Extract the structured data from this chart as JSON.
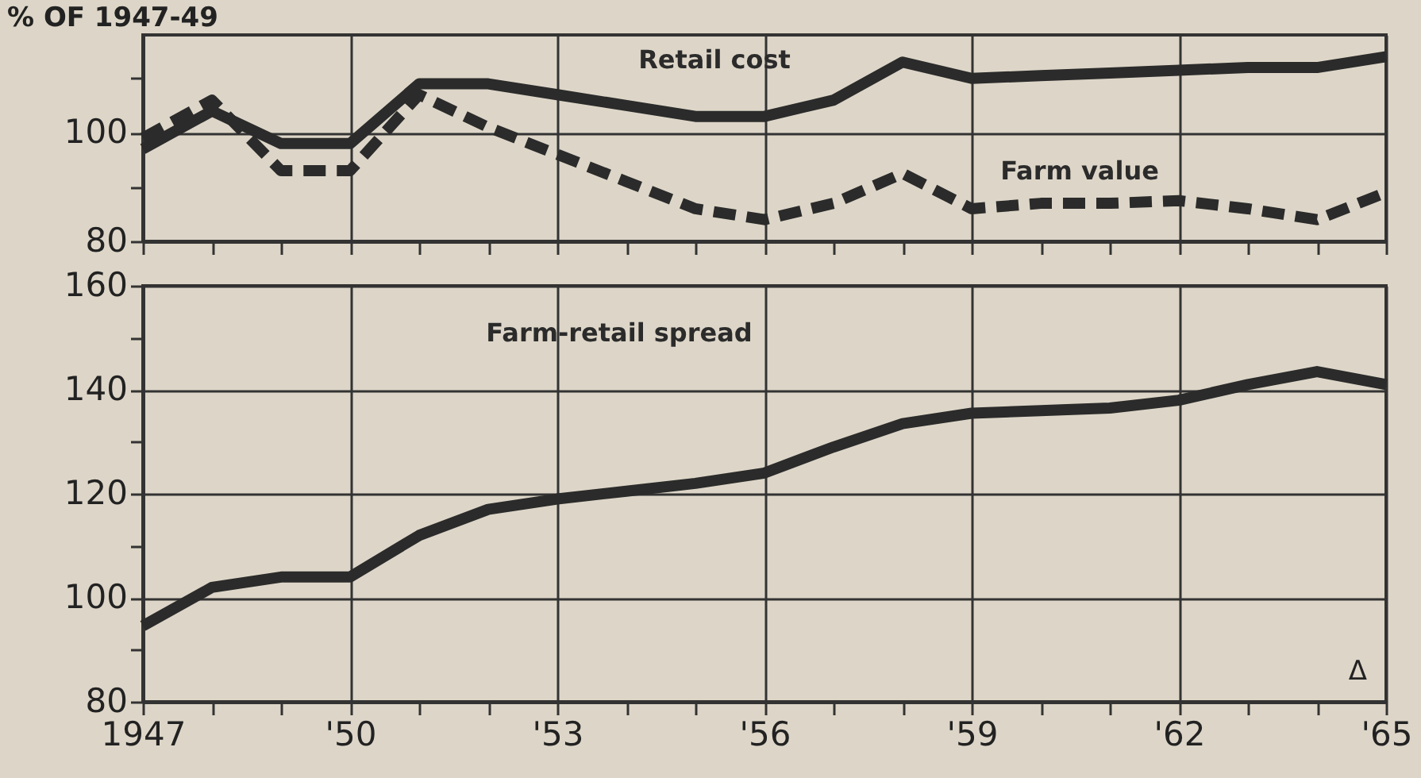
{
  "chart_data": [
    {
      "type": "line",
      "ylabel": "% OF 1947-49",
      "x": [
        1947,
        1948,
        1949,
        1950,
        1951,
        1952,
        1953,
        1954,
        1955,
        1956,
        1957,
        1958,
        1959,
        1960,
        1961,
        1962,
        1963,
        1964,
        1965
      ],
      "series": [
        {
          "name": "Retail cost",
          "color": "#2b2b2b",
          "line_style": "solid",
          "values": [
            97,
            104,
            98,
            98,
            109,
            109,
            107,
            105,
            103,
            103,
            106,
            113,
            110,
            110.5,
            111,
            111.5,
            112,
            112,
            114
          ]
        },
        {
          "name": "Farm value",
          "color": "#2b2b2b",
          "line_style": "dashed",
          "values": [
            99,
            106,
            93,
            93,
            107,
            101,
            96,
            91,
            86,
            84,
            87,
            92.5,
            86,
            87,
            87,
            87.5,
            86,
            84,
            89
          ]
        }
      ],
      "xlim": [
        1947,
        1965
      ],
      "xticks": [
        1947,
        {
          "value": 1948,
          "label": null
        },
        {
          "value": 1949,
          "label": null
        },
        1950,
        {
          "value": 1951,
          "label": null
        },
        {
          "value": 1952,
          "label": null
        },
        1953,
        {
          "value": 1954,
          "label": null
        },
        {
          "value": 1955,
          "label": null
        },
        1956,
        {
          "value": 1957,
          "label": null
        },
        {
          "value": 1958,
          "label": null
        },
        1959,
        {
          "value": 1960,
          "label": null
        },
        {
          "value": 1961,
          "label": null
        },
        1962,
        {
          "value": 1963,
          "label": null
        },
        {
          "value": 1964,
          "label": null
        },
        1965
      ],
      "ylim": [
        80,
        118
      ],
      "yticks": [
        80,
        {
          "value": 90,
          "label": null
        },
        100,
        {
          "value": 110,
          "label": null
        }
      ],
      "grid": true,
      "tick_labels": "y"
    },
    {
      "type": "line",
      "x": [
        1947,
        1948,
        1949,
        1950,
        1951,
        1952,
        1953,
        1954,
        1955,
        1956,
        1957,
        1958,
        1959,
        1960,
        1961,
        1962,
        1963,
        1964,
        1965
      ],
      "series": [
        {
          "name": "Farm-retail spread",
          "color": "#2b2b2b",
          "line_style": "solid",
          "values": [
            94.6,
            102,
            104,
            104,
            112,
            117,
            119,
            120.5,
            122,
            124,
            129,
            133.5,
            135.5,
            136,
            136.5,
            138,
            141,
            143.5,
            141
          ]
        }
      ],
      "annotations": [
        "Δ"
      ],
      "xlim": [
        1947,
        1965
      ],
      "xticks": [
        1947,
        {
          "value": 1948,
          "label": null
        },
        {
          "value": 1949,
          "label": null
        },
        {
          "value": 1950,
          "label": "'50"
        },
        {
          "value": 1951,
          "label": null
        },
        {
          "value": 1952,
          "label": null
        },
        {
          "value": 1953,
          "label": "'53"
        },
        {
          "value": 1954,
          "label": null
        },
        {
          "value": 1955,
          "label": null
        },
        {
          "value": 1956,
          "label": "'56"
        },
        {
          "value": 1957,
          "label": null
        },
        {
          "value": 1958,
          "label": null
        },
        {
          "value": 1959,
          "label": "'59"
        },
        {
          "value": 1960,
          "label": null
        },
        {
          "value": 1961,
          "label": null
        },
        {
          "value": 1962,
          "label": "'62"
        },
        {
          "value": 1963,
          "label": null
        },
        {
          "value": 1964,
          "label": null
        },
        {
          "value": 1965,
          "label": "'65"
        }
      ],
      "ylim": [
        80,
        160
      ],
      "yticks": [
        80,
        {
          "value": 90,
          "label": null
        },
        100,
        {
          "value": 110,
          "label": null
        },
        120,
        {
          "value": 130,
          "label": null
        },
        140,
        {
          "value": 150,
          "label": null
        },
        160
      ],
      "grid": true
    }
  ]
}
